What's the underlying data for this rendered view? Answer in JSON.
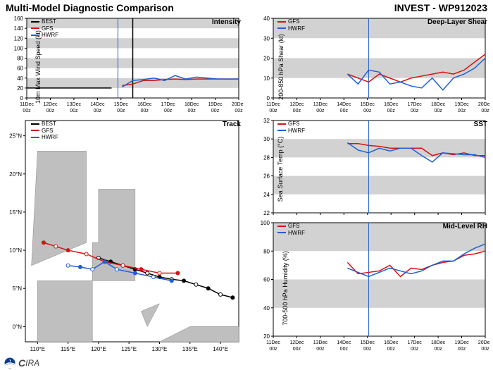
{
  "header": {
    "title": "Multi-Model Diagnostic Comparison",
    "storm_id": "INVEST - WP912023"
  },
  "footer": {
    "org": "IRA"
  },
  "time_axis": {
    "labels": [
      "11Dec 00z",
      "12Dec 00z",
      "13Dec 00z",
      "14Dec 00z",
      "15Dec 00z",
      "16Dec 00z",
      "17Dec 00z",
      "18Dec 00z",
      "19Dec 00z",
      "20Dec 00z"
    ],
    "nowline_frac": 0.49
  },
  "colors": {
    "best": "#000000",
    "gfs": "#d61313",
    "hwrf": "#1f5fd6",
    "band": "#d2d2d2",
    "axis": "#000",
    "nowline": "#1f5fd6",
    "map_land": "#bfbfbf",
    "map_sea": "#ffffff"
  },
  "panels": {
    "intensity": {
      "title": "Intensity",
      "ylabel": "10m Max Wind Speed (kt)",
      "ylim": [
        0,
        160
      ],
      "ytick_step": 20,
      "bands_step": 20,
      "legend": [
        "BEST",
        "GFS",
        "HWRF"
      ],
      "series": {
        "best": [
          [
            0,
            20
          ],
          [
            0.08,
            20
          ],
          [
            0.16,
            20
          ],
          [
            0.24,
            20
          ],
          [
            0.32,
            20
          ],
          [
            0.4,
            20
          ]
        ],
        "gfs": [
          [
            0.45,
            25
          ],
          [
            0.5,
            28
          ],
          [
            0.55,
            35
          ],
          [
            0.6,
            35
          ],
          [
            0.65,
            37
          ],
          [
            0.7,
            38
          ],
          [
            0.75,
            37
          ],
          [
            0.8,
            38
          ],
          [
            0.85,
            38
          ],
          [
            0.9,
            38
          ],
          [
            0.95,
            38
          ],
          [
            1.0,
            38
          ]
        ],
        "hwrf": [
          [
            0.45,
            22
          ],
          [
            0.5,
            35
          ],
          [
            0.55,
            37
          ],
          [
            0.6,
            40
          ],
          [
            0.65,
            35
          ],
          [
            0.7,
            45
          ],
          [
            0.75,
            38
          ],
          [
            0.8,
            42
          ],
          [
            0.85,
            40
          ],
          [
            0.9,
            38
          ],
          [
            0.95,
            38
          ],
          [
            1.0,
            38
          ]
        ]
      },
      "vlines": [
        {
          "x": 0.43,
          "color": "#1f5fd6"
        },
        {
          "x": 0.5,
          "color": "#000",
          "w": 1.5
        }
      ]
    },
    "shear": {
      "title": "Deep-Layer Shear",
      "ylabel": "200-850 hPa Shear (kt)",
      "ylim": [
        0,
        40
      ],
      "ytick_step": 10,
      "bands_step": 10,
      "legend": [
        "GFS",
        "HWRF"
      ],
      "series": {
        "gfs": [
          [
            0.35,
            12
          ],
          [
            0.4,
            10
          ],
          [
            0.45,
            8
          ],
          [
            0.5,
            12
          ],
          [
            0.55,
            10
          ],
          [
            0.6,
            8
          ],
          [
            0.65,
            10
          ],
          [
            0.7,
            11
          ],
          [
            0.75,
            12
          ],
          [
            0.8,
            13
          ],
          [
            0.85,
            12
          ],
          [
            0.9,
            14
          ],
          [
            0.95,
            18
          ],
          [
            1.0,
            22
          ]
        ],
        "hwrf": [
          [
            0.35,
            12
          ],
          [
            0.4,
            7
          ],
          [
            0.45,
            14
          ],
          [
            0.5,
            13
          ],
          [
            0.55,
            7
          ],
          [
            0.6,
            8
          ],
          [
            0.65,
            6
          ],
          [
            0.7,
            5
          ],
          [
            0.75,
            10
          ],
          [
            0.8,
            4
          ],
          [
            0.85,
            10
          ],
          [
            0.9,
            12
          ],
          [
            0.95,
            15
          ],
          [
            1.0,
            20
          ]
        ]
      },
      "vlines": [
        {
          "x": 0.45,
          "color": "#1f5fd6"
        }
      ]
    },
    "sst": {
      "title": "SST",
      "ylabel": "Sea Surface Temp (°C)",
      "ylim": [
        22,
        32
      ],
      "ytick_step": 2,
      "bands_step": 2,
      "legend": [
        "GFS",
        "HWRF"
      ],
      "series": {
        "gfs": [
          [
            0.35,
            29.5
          ],
          [
            0.4,
            29.5
          ],
          [
            0.45,
            29.3
          ],
          [
            0.5,
            29.2
          ],
          [
            0.55,
            29
          ],
          [
            0.6,
            29
          ],
          [
            0.65,
            29
          ],
          [
            0.7,
            29
          ],
          [
            0.75,
            28.2
          ],
          [
            0.8,
            28.5
          ],
          [
            0.85,
            28.3
          ],
          [
            0.9,
            28.5
          ],
          [
            0.95,
            28.2
          ],
          [
            1.0,
            28.2
          ]
        ],
        "hwrf": [
          [
            0.35,
            29.6
          ],
          [
            0.4,
            28.8
          ],
          [
            0.45,
            28.5
          ],
          [
            0.5,
            29
          ],
          [
            0.55,
            28.7
          ],
          [
            0.6,
            29
          ],
          [
            0.65,
            29
          ],
          [
            0.7,
            28.2
          ],
          [
            0.75,
            27.5
          ],
          [
            0.8,
            28.5
          ],
          [
            0.85,
            28.4
          ],
          [
            0.9,
            28.3
          ],
          [
            0.95,
            28.3
          ],
          [
            1.0,
            28
          ]
        ]
      },
      "vlines": [
        {
          "x": 0.45,
          "color": "#1f5fd6"
        }
      ]
    },
    "rh": {
      "title": "Mid-Level RH",
      "ylabel": "700-500 hPa Humidity (%)",
      "ylim": [
        20,
        100
      ],
      "ytick_step": 20,
      "bands_step": 20,
      "legend": [
        "GFS",
        "HWRF"
      ],
      "series": {
        "gfs": [
          [
            0.35,
            72
          ],
          [
            0.4,
            64
          ],
          [
            0.45,
            65
          ],
          [
            0.5,
            66
          ],
          [
            0.55,
            70
          ],
          [
            0.6,
            62
          ],
          [
            0.65,
            68
          ],
          [
            0.7,
            67
          ],
          [
            0.75,
            70
          ],
          [
            0.8,
            72
          ],
          [
            0.85,
            73
          ],
          [
            0.9,
            77
          ],
          [
            0.95,
            78
          ],
          [
            1.0,
            80
          ]
        ],
        "hwrf": [
          [
            0.35,
            68
          ],
          [
            0.4,
            65
          ],
          [
            0.45,
            62
          ],
          [
            0.5,
            65
          ],
          [
            0.55,
            68
          ],
          [
            0.6,
            66
          ],
          [
            0.65,
            64
          ],
          [
            0.7,
            66
          ],
          [
            0.75,
            70
          ],
          [
            0.8,
            73
          ],
          [
            0.85,
            73
          ],
          [
            0.9,
            78
          ],
          [
            0.95,
            82
          ],
          [
            1.0,
            85
          ]
        ]
      },
      "vlines": [
        {
          "x": 0.45,
          "color": "#1f5fd6"
        }
      ]
    },
    "track": {
      "title": "Track",
      "xlim": [
        108,
        143
      ],
      "xtick_step": 5,
      "xunit": "°E",
      "ylim": [
        -2,
        27
      ],
      "ytick_step": 5,
      "yunit": "°N",
      "legend": [
        "BEST",
        "GFS",
        "HWRF"
      ],
      "tracks": {
        "best": [
          [
            142,
            3.8
          ],
          [
            140,
            4.2
          ],
          [
            138,
            5
          ],
          [
            136,
            5.5
          ],
          [
            134,
            6
          ],
          [
            132,
            6.2
          ],
          [
            130,
            6.5
          ],
          [
            128,
            7
          ],
          [
            126,
            7.5
          ],
          [
            124,
            8
          ],
          [
            122,
            8.5
          ],
          [
            120,
            9
          ]
        ],
        "gfs": [
          [
            133,
            7
          ],
          [
            130,
            7
          ],
          [
            127,
            7.5
          ],
          [
            124,
            8
          ],
          [
            121,
            8.5
          ],
          [
            118,
            9.5
          ],
          [
            115,
            10
          ],
          [
            113,
            10.5
          ],
          [
            111,
            11
          ]
        ],
        "hwrf": [
          [
            132,
            6
          ],
          [
            129,
            6.5
          ],
          [
            126,
            7
          ],
          [
            123,
            7.5
          ],
          [
            121,
            8.5
          ],
          [
            119,
            7.5
          ],
          [
            117,
            7.8
          ],
          [
            115,
            8
          ]
        ]
      },
      "land": [
        [
          [
            119,
            6
          ],
          [
            126,
            6
          ],
          [
            126,
            18
          ],
          [
            120,
            18
          ],
          [
            120,
            11
          ],
          [
            119,
            11
          ]
        ],
        [
          [
            109,
            8
          ],
          [
            110,
            23
          ],
          [
            118,
            23
          ],
          [
            118,
            11
          ],
          [
            109,
            8
          ]
        ],
        [
          [
            110,
            -2
          ],
          [
            119,
            -2
          ],
          [
            119,
            6
          ],
          [
            110,
            6
          ]
        ],
        [
          [
            130,
            -2
          ],
          [
            143,
            -2
          ],
          [
            143,
            0
          ],
          [
            135,
            0
          ],
          [
            130,
            -2
          ]
        ],
        [
          [
            128,
            0
          ],
          [
            130,
            3
          ],
          [
            127,
            2
          ]
        ]
      ]
    }
  }
}
